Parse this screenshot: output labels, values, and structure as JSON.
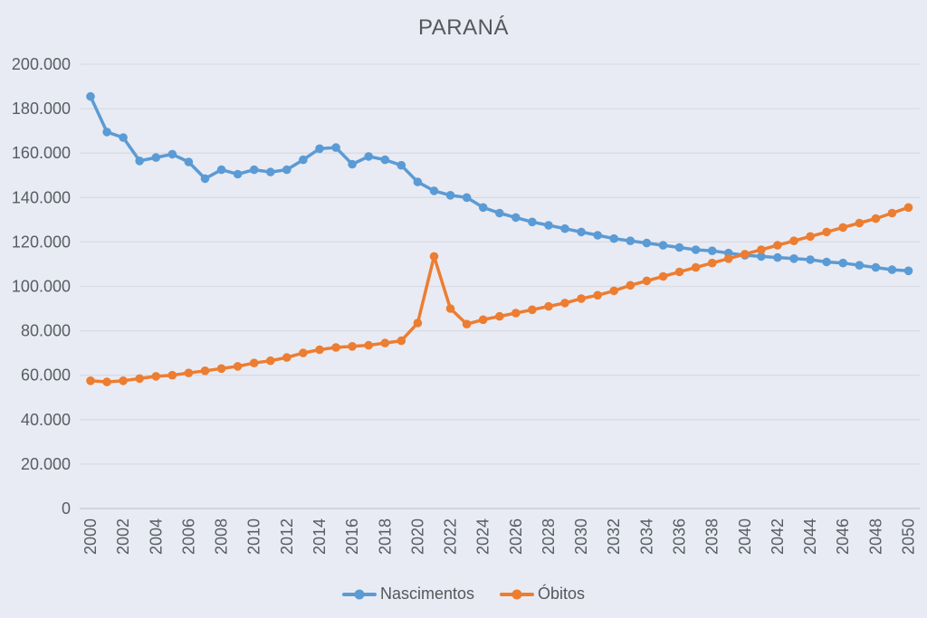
{
  "title": "PARANÁ",
  "colors": {
    "nascimentos": "#5B9BD5",
    "obitos": "#ED7D31",
    "text": "#585c63",
    "grid": "#d8dbe2",
    "axis": "#c3c8d1",
    "background": "#e8ebf3"
  },
  "legend": [
    {
      "id": "nascimentos",
      "label": "Nascimentos",
      "color": "#5B9BD5"
    },
    {
      "id": "obitos",
      "label": "Óbitos",
      "color": "#ED7D31"
    }
  ],
  "chart_data": {
    "type": "line",
    "title": "PARANÁ",
    "xlabel": "",
    "ylabel": "",
    "grid": true,
    "legend_position": "bottom",
    "ylim": [
      0,
      200000
    ],
    "y_tick_interval": 20000,
    "y_ticks": [
      {
        "value": 0,
        "label": "0"
      },
      {
        "value": 20000,
        "label": "20.000"
      },
      {
        "value": 40000,
        "label": "40.000"
      },
      {
        "value": 60000,
        "label": "60.000"
      },
      {
        "value": 80000,
        "label": "80.000"
      },
      {
        "value": 100000,
        "label": "100.000"
      },
      {
        "value": 120000,
        "label": "120.000"
      },
      {
        "value": 140000,
        "label": "140.000"
      },
      {
        "value": 160000,
        "label": "160.000"
      },
      {
        "value": 180000,
        "label": "180.000"
      },
      {
        "value": 200000,
        "label": "200.000"
      }
    ],
    "x_tick_labels": [
      "2000",
      "2002",
      "2004",
      "2006",
      "2008",
      "2010",
      "2012",
      "2014",
      "2016",
      "2018",
      "2020",
      "2022",
      "2024",
      "2026",
      "2028",
      "2030",
      "2032",
      "2034",
      "2036",
      "2038",
      "2040",
      "2042",
      "2044",
      "2046",
      "2048",
      "2050"
    ],
    "x": [
      2000,
      2001,
      2002,
      2003,
      2004,
      2005,
      2006,
      2007,
      2008,
      2009,
      2010,
      2011,
      2012,
      2013,
      2014,
      2015,
      2016,
      2017,
      2018,
      2019,
      2020,
      2021,
      2022,
      2023,
      2024,
      2025,
      2026,
      2027,
      2028,
      2029,
      2030,
      2031,
      2032,
      2033,
      2034,
      2035,
      2036,
      2037,
      2038,
      2039,
      2040,
      2041,
      2042,
      2043,
      2044,
      2045,
      2046,
      2047,
      2048,
      2049,
      2050
    ],
    "series": [
      {
        "name": "Nascimentos",
        "color": "#5B9BD5",
        "marker": "circle",
        "values": [
          185500,
          169500,
          167000,
          156500,
          158000,
          159500,
          156000,
          148500,
          152500,
          150500,
          152500,
          151500,
          152500,
          157000,
          162000,
          162500,
          155000,
          158500,
          157000,
          154500,
          147000,
          143000,
          141000,
          140000,
          135500,
          133000,
          131000,
          129000,
          127500,
          126000,
          124500,
          123000,
          121500,
          120500,
          119500,
          118500,
          117500,
          116500,
          116000,
          115000,
          114000,
          113500,
          113000,
          112500,
          112000,
          111000,
          110500,
          109500,
          108500,
          107500,
          107000
        ]
      },
      {
        "name": "Óbitos",
        "color": "#ED7D31",
        "marker": "circle",
        "values": [
          57500,
          57000,
          57500,
          58500,
          59500,
          60000,
          61000,
          62000,
          63000,
          64000,
          65500,
          66500,
          68000,
          70000,
          71500,
          72500,
          73000,
          73500,
          74500,
          75500,
          83500,
          113500,
          90000,
          83000,
          85000,
          86500,
          88000,
          89500,
          91000,
          92500,
          94500,
          96000,
          98000,
          100500,
          102500,
          104500,
          106500,
          108500,
          110500,
          112500,
          114500,
          116500,
          118500,
          120500,
          122500,
          124500,
          126500,
          128500,
          130500,
          133000,
          135500
        ]
      }
    ]
  }
}
